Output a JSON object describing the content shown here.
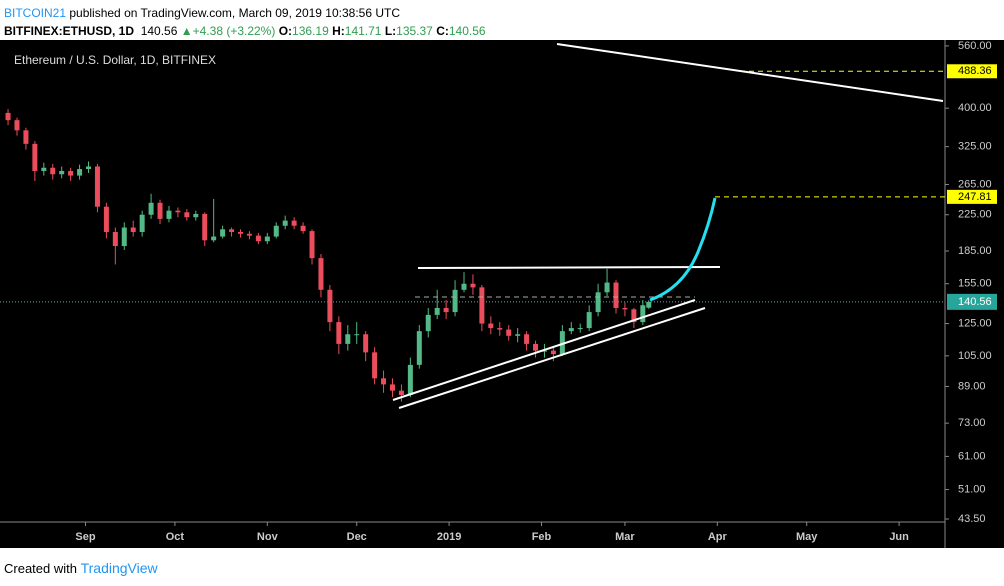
{
  "header": {
    "publisher": "BITCOIN21",
    "published": "published on TradingView.com, March 09, 2019 10:38:56 UTC",
    "symbol": "BITFINEX:ETHUSD, 1D",
    "change": "+4.38 (+3.22%)",
    "o_label": "O:",
    "h_label": "H:",
    "l_label": "L:",
    "c_label": "C:"
  },
  "chart_data": {
    "type": "candlestick",
    "title": "Ethereum / U.S. Dollar, 1D, BITFINEX",
    "x": [
      0,
      3,
      6,
      9,
      12,
      15,
      18,
      21,
      24,
      27,
      30,
      33,
      36,
      39,
      42,
      45,
      48,
      51,
      54,
      57,
      60,
      63,
      66,
      69,
      72,
      75,
      78,
      81,
      84,
      87,
      90,
      93,
      96,
      99,
      102,
      105,
      108,
      111,
      114,
      117,
      120,
      123,
      126,
      129,
      132,
      135,
      138,
      141,
      144,
      147,
      150,
      153,
      156,
      159,
      162,
      165,
      168,
      171,
      174,
      177,
      180,
      183,
      186,
      189,
      192,
      195,
      198,
      201,
      204,
      207,
      210,
      213,
      215
    ],
    "open": [
      390,
      375,
      355,
      330,
      285,
      290,
      280,
      285,
      278,
      288,
      292,
      235,
      205,
      190,
      210,
      205,
      225,
      240,
      220,
      230,
      228,
      222,
      226,
      196,
      200,
      208,
      205,
      203,
      201,
      195,
      200,
      212,
      218,
      212,
      206,
      178,
      150,
      126,
      112,
      118,
      118,
      107,
      93,
      90,
      87,
      85,
      100,
      120,
      131,
      136,
      133,
      150,
      155,
      152,
      125,
      122,
      121,
      117,
      118,
      112,
      108,
      108,
      106,
      120,
      122,
      122,
      133,
      148,
      156,
      136,
      135,
      126,
      136.19
    ],
    "high": [
      398,
      380,
      360,
      335,
      298,
      296,
      292,
      290,
      295,
      300,
      296,
      240,
      210,
      216,
      218,
      230,
      252,
      244,
      236,
      234,
      232,
      230,
      228,
      245,
      212,
      210,
      208,
      206,
      204,
      204,
      216,
      224,
      222,
      216,
      208,
      182,
      154,
      130,
      124,
      126,
      120,
      110,
      97,
      93,
      90,
      104,
      124,
      136,
      150,
      142,
      158,
      165,
      163,
      154,
      130,
      126,
      124,
      122,
      120,
      114,
      112,
      110,
      124,
      126,
      125,
      138,
      155,
      168,
      158,
      140,
      136,
      142,
      141.71
    ],
    "low": [
      365,
      345,
      320,
      270,
      278,
      272,
      274,
      270,
      272,
      282,
      228,
      198,
      172,
      186,
      200,
      200,
      220,
      214,
      216,
      222,
      218,
      218,
      190,
      194,
      198,
      200,
      199,
      197,
      192,
      192,
      198,
      208,
      208,
      203,
      172,
      144,
      120,
      106,
      108,
      112,
      102,
      90,
      86,
      84,
      82,
      84,
      98,
      116,
      128,
      128,
      130,
      148,
      146,
      120,
      118,
      117,
      114,
      113,
      108,
      104,
      104,
      102,
      105,
      118,
      119,
      120,
      130,
      145,
      132,
      130,
      122,
      124,
      135.37
    ],
    "close": [
      375,
      355,
      330,
      285,
      290,
      280,
      285,
      278,
      288,
      292,
      235,
      205,
      190,
      210,
      205,
      225,
      240,
      220,
      230,
      228,
      222,
      226,
      196,
      200,
      208,
      205,
      203,
      201,
      195,
      200,
      212,
      218,
      212,
      206,
      178,
      150,
      126,
      112,
      118,
      118,
      107,
      93,
      90,
      87,
      85,
      100,
      120,
      131,
      136,
      133,
      150,
      155,
      152,
      125,
      122,
      121,
      117,
      118,
      112,
      108,
      108,
      106,
      120,
      122,
      122,
      133,
      148,
      156,
      136,
      135,
      126,
      138,
      140.56
    ],
    "up_color": "#53b987",
    "down_color": "#eb4d5c",
    "xlim": [
      -2.7,
      314.4
    ],
    "xticks": [
      {
        "value": 26,
        "label": "Sep"
      },
      {
        "value": 56,
        "label": "Oct"
      },
      {
        "value": 87,
        "label": "Nov"
      },
      {
        "value": 117,
        "label": "Dec"
      },
      {
        "value": 148,
        "label": "2019"
      },
      {
        "value": 179,
        "label": "Feb"
      },
      {
        "value": 207,
        "label": "Mar"
      },
      {
        "value": 238,
        "label": "Apr"
      },
      {
        "value": 268,
        "label": "May"
      },
      {
        "value": 299,
        "label": "Jun"
      }
    ],
    "ylim": [
      42.8,
      572
    ],
    "log_y": true,
    "yticks": [
      {
        "value": 560,
        "label": "560.00"
      },
      {
        "value": 400,
        "label": "400.00"
      },
      {
        "value": 325,
        "label": "325.00"
      },
      {
        "value": 265,
        "label": "265.00"
      },
      {
        "value": 225,
        "label": "225.00"
      },
      {
        "value": 185,
        "label": "185.00"
      },
      {
        "value": 155,
        "label": "155.00"
      },
      {
        "value": 125,
        "label": "125.00"
      },
      {
        "value": 105,
        "label": "105.00"
      },
      {
        "value": 89,
        "label": "89.00"
      },
      {
        "value": 73,
        "label": "73.00"
      },
      {
        "value": 61,
        "label": "61.00"
      },
      {
        "value": 51,
        "label": "51.00"
      },
      {
        "value": 43.5,
        "label": "43.50"
      }
    ],
    "last_price": 140.56,
    "last_color": "#26a69a",
    "price_lines": [
      {
        "value": 488.36,
        "color": "#ffff00"
      },
      {
        "value": 247.81,
        "color": "#ffff00"
      }
    ]
  },
  "footer": {
    "created": "Created with",
    "brand": "TradingView"
  }
}
